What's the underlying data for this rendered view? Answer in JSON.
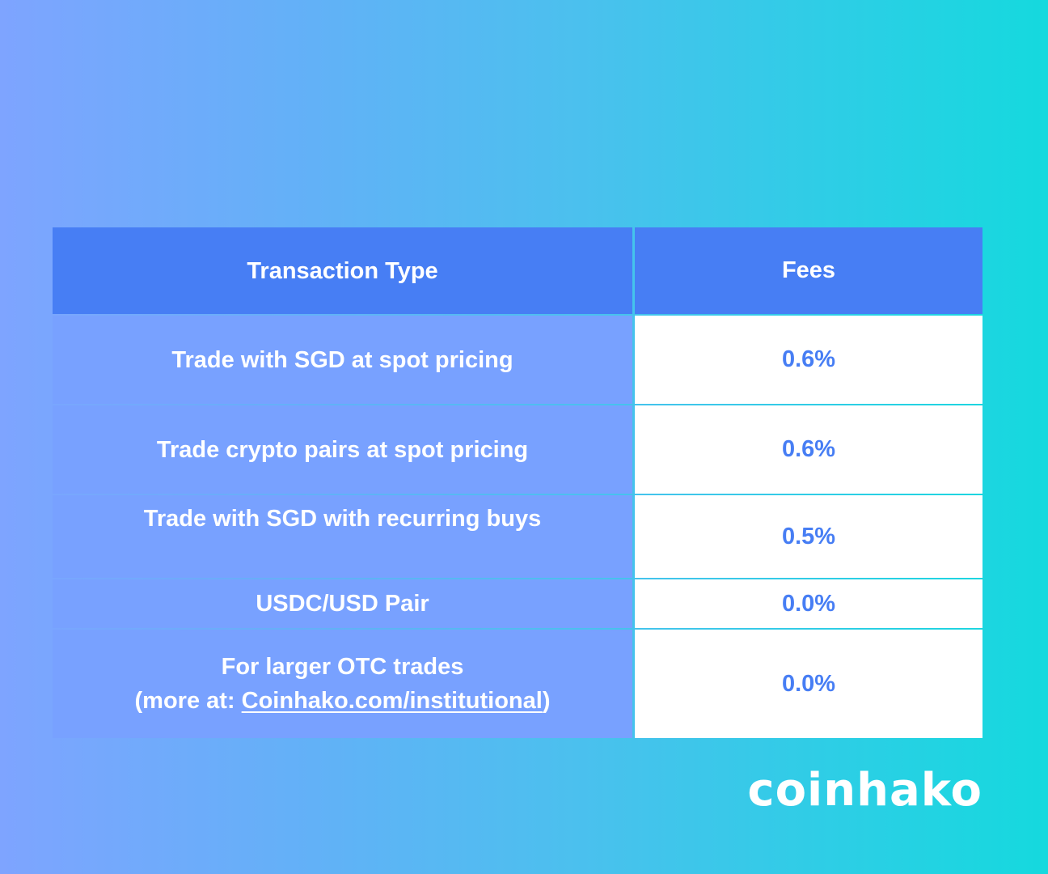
{
  "table": {
    "headers": {
      "type": "Transaction Type",
      "fee": "Fees"
    },
    "rows": [
      {
        "type": "Trade with SGD at spot pricing",
        "fee": "0.6%"
      },
      {
        "type": "Trade crypto pairs at spot pricing",
        "fee": "0.6%"
      },
      {
        "type": "Trade with SGD with recurring buys",
        "fee": "0.5%"
      },
      {
        "type": "USDC/USD Pair",
        "fee": "0.0%"
      },
      {
        "type_line1": "For larger OTC trades",
        "type_line2_prefix": "(more at: ",
        "type_line2_link": "Coinhako.com/institutional",
        "type_line2_suffix": ")",
        "fee": "0.0%"
      }
    ]
  },
  "brand": {
    "logo_text": "coinhako"
  },
  "colors": {
    "header_bg": "#477ef4",
    "type_cell_bg": "#78a1ff",
    "fee_text": "#477ef4",
    "gradient_start": "#7ea4ff",
    "gradient_end": "#15d9de"
  }
}
